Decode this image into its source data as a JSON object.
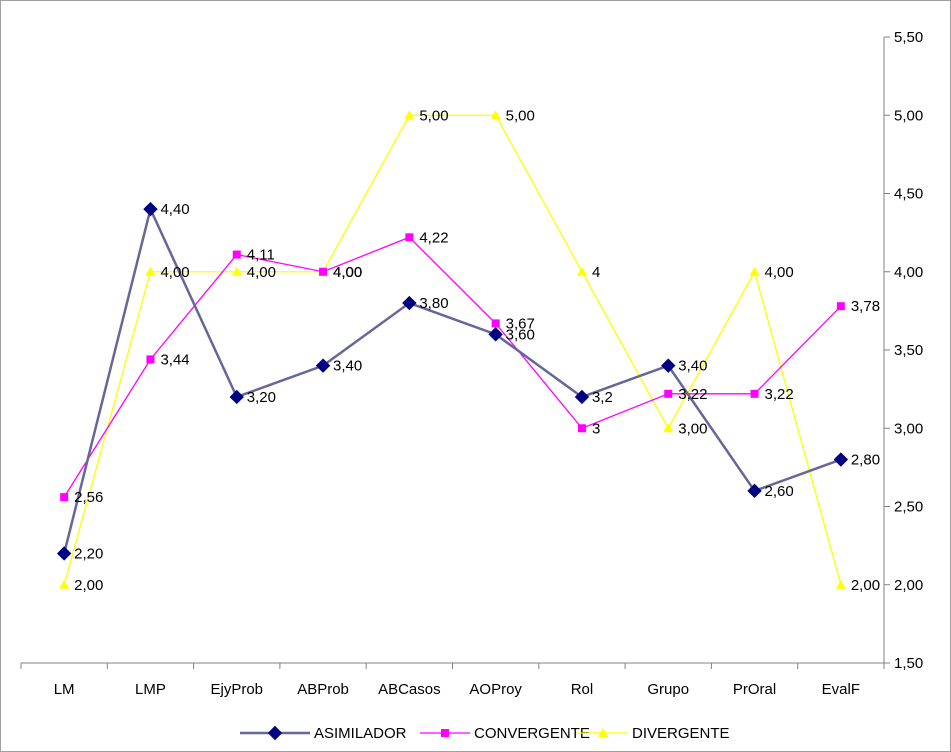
{
  "chart_data": {
    "type": "line",
    "categories": [
      "LM",
      "LMP",
      "EjyProb",
      "ABProb",
      "ABCasos",
      "AOProy",
      "Rol",
      "Grupo",
      "PrOral",
      "EvalF"
    ],
    "ylim": [
      1.5,
      5.5
    ],
    "y_axis_position": "right",
    "y_ticks": [
      "1,50",
      "2,00",
      "2,50",
      "3,00",
      "3,50",
      "4,00",
      "4,50",
      "5,00",
      "5,50"
    ],
    "y_tick_values": [
      1.5,
      2.0,
      2.5,
      3.0,
      3.5,
      4.0,
      4.5,
      5.0,
      5.5
    ],
    "grid": false,
    "legend_position": "bottom",
    "series": [
      {
        "name": "ASIMILADOR",
        "color": "#000080",
        "line_color": "#666699",
        "marker": "diamond",
        "values": [
          2.2,
          4.4,
          3.2,
          3.4,
          3.8,
          3.6,
          3.2,
          3.4,
          2.6,
          2.8
        ],
        "labels": [
          "2,20",
          "4,40",
          "3,20",
          "3,40",
          "3,80",
          "3,60",
          "3,2",
          "3,40",
          "2,60",
          "2,80"
        ]
      },
      {
        "name": "CONVERGENTE",
        "color": "#ff00ff",
        "line_color": "#ff00ff",
        "marker": "square",
        "values": [
          2.56,
          3.44,
          4.11,
          4.0,
          4.22,
          3.67,
          3.0,
          3.22,
          3.22,
          3.78
        ],
        "labels": [
          "2,56",
          "3,44",
          "4,11",
          "4,00",
          "4,22",
          "3,67",
          "3",
          "3,22",
          "3,22",
          "3,78"
        ]
      },
      {
        "name": "DIVERGENTE",
        "color": "#ffff00",
        "line_color": "#ffff00",
        "marker": "triangle",
        "values": [
          2.0,
          4.0,
          4.0,
          4.0,
          5.0,
          5.0,
          4.0,
          3.0,
          4.0,
          2.0
        ],
        "labels": [
          "2,00",
          "4,00",
          "4,00",
          "4,00",
          "5,00",
          "5,00",
          "4",
          "3,00",
          "4,00",
          "2,00"
        ]
      }
    ]
  }
}
